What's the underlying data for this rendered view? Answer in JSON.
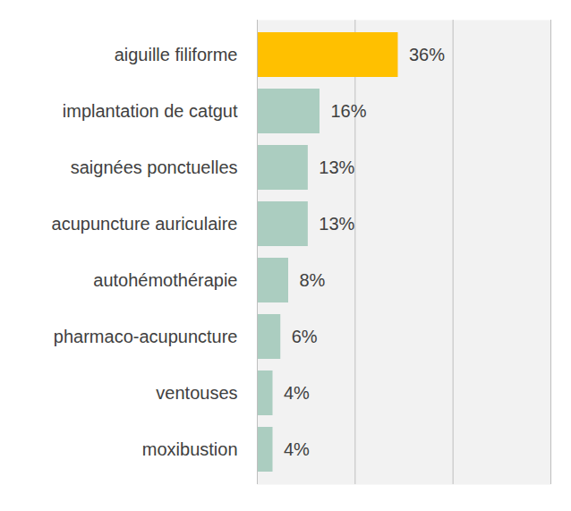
{
  "chart_data": {
    "type": "bar",
    "orientation": "horizontal",
    "categories": [
      "aiguille filiforme",
      "implantation de catgut",
      "saignées ponctuelles",
      "acupuncture auriculaire",
      "autohémothérapie",
      "pharmaco-acupuncture",
      "ventouses",
      "moxibustion"
    ],
    "values": [
      36,
      16,
      13,
      13,
      8,
      6,
      4,
      4
    ],
    "value_labels": [
      "36%",
      "16%",
      "13%",
      "13%",
      "8%",
      "6%",
      "4%",
      "4%"
    ],
    "colors": [
      "#ffc000",
      "#abcdc0",
      "#abcdc0",
      "#abcdc0",
      "#abcdc0",
      "#abcdc0",
      "#abcdc0",
      "#abcdc0"
    ],
    "xlim": [
      0,
      75
    ],
    "xticks": [
      0,
      25,
      50,
      75
    ],
    "grid": true,
    "data_labels": true,
    "tick_labels": "y"
  }
}
